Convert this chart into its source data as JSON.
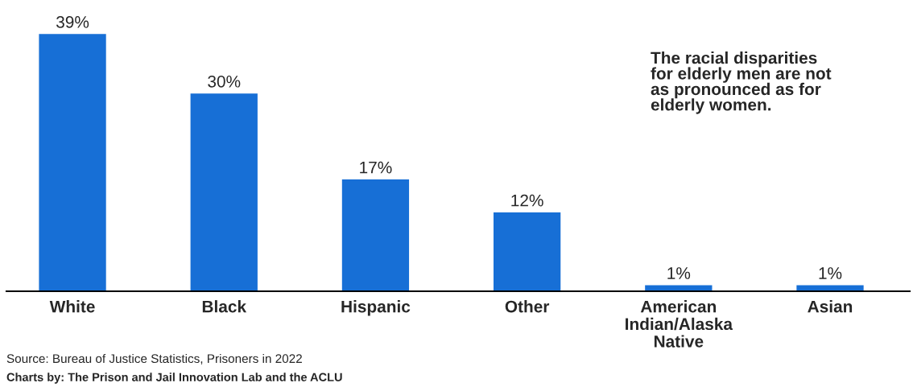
{
  "chart_data": {
    "type": "bar",
    "categories": [
      "White",
      "Black",
      "Hispanic",
      "Other",
      "American Indian/Alaska Native",
      "Asian"
    ],
    "values": [
      39,
      30,
      17,
      12,
      1,
      1
    ],
    "value_labels": [
      "39%",
      "30%",
      "17%",
      "12%",
      "1%",
      "1%"
    ],
    "color": "#176fd6",
    "grid": false,
    "annotations": [
      "The racial disparities for elderly men are not as pronounced as for elderly women.",
      "Source: Bureau of Justice Statistics, Prisoners in 2022",
      "Charts by: The Prison and Jail Innovation Lab and the ACLU"
    ]
  }
}
